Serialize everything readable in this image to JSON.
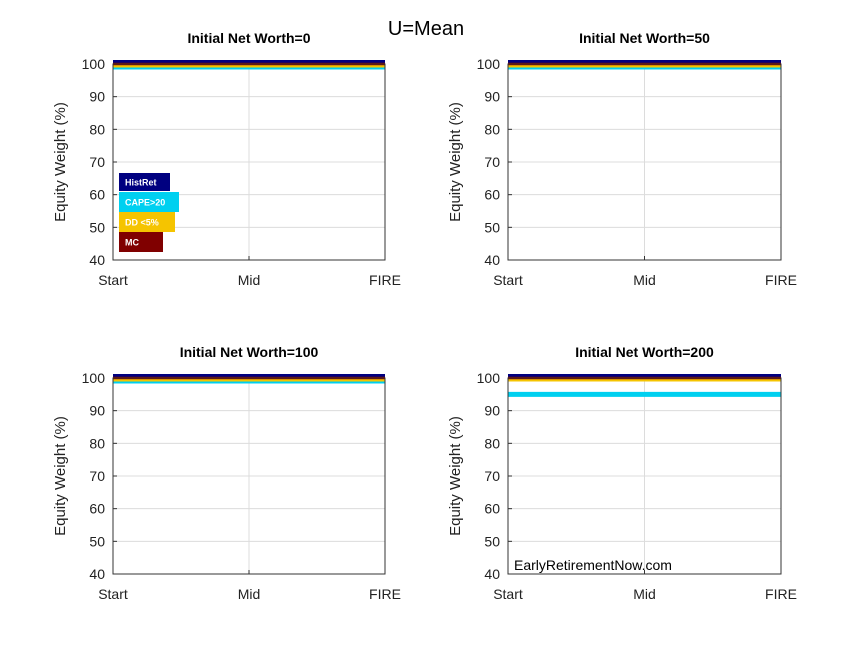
{
  "figure": {
    "title": "U=Mean",
    "watermark": "EarlyRetirementNow.com"
  },
  "legend": {
    "entries": [
      {
        "label": "HistRet",
        "color": "#000080"
      },
      {
        "label": "CAPE>20",
        "color": "#00d0f0"
      },
      {
        "label": "DD <5%",
        "color": "#f5c400"
      },
      {
        "label": "MC",
        "color": "#800000"
      }
    ]
  },
  "chart_data": [
    {
      "type": "line",
      "title": "Initial Net Worth=0",
      "ylabel": "Equity Weight (%)",
      "xticks": [
        "Start",
        "Mid",
        "FIRE"
      ],
      "ylim": [
        40,
        100
      ],
      "yticks": [
        40,
        50,
        60,
        70,
        80,
        90,
        100
      ],
      "grid": true,
      "x": [
        0,
        1,
        2
      ],
      "series": [
        {
          "name": "HistRet",
          "color": "#000080",
          "values": [
            100,
            100,
            100
          ]
        },
        {
          "name": "CAPE>20",
          "color": "#00d0f0",
          "values": [
            100,
            100,
            100
          ]
        },
        {
          "name": "DD <5%",
          "color": "#f5c400",
          "values": [
            100,
            100,
            100
          ]
        },
        {
          "name": "MC",
          "color": "#800000",
          "values": [
            100,
            100,
            100
          ]
        }
      ]
    },
    {
      "type": "line",
      "title": "Initial Net Worth=50",
      "ylabel": "Equity Weight (%)",
      "xticks": [
        "Start",
        "Mid",
        "FIRE"
      ],
      "ylim": [
        40,
        100
      ],
      "yticks": [
        40,
        50,
        60,
        70,
        80,
        90,
        100
      ],
      "grid": true,
      "x": [
        0,
        1,
        2
      ],
      "series": [
        {
          "name": "HistRet",
          "color": "#000080",
          "values": [
            100,
            100,
            100
          ]
        },
        {
          "name": "CAPE>20",
          "color": "#00d0f0",
          "values": [
            100,
            100,
            100
          ]
        },
        {
          "name": "DD <5%",
          "color": "#f5c400",
          "values": [
            100,
            100,
            100
          ]
        },
        {
          "name": "MC",
          "color": "#800000",
          "values": [
            100,
            100,
            100
          ]
        }
      ]
    },
    {
      "type": "line",
      "title": "Initial Net Worth=100",
      "ylabel": "Equity Weight (%)",
      "xticks": [
        "Start",
        "Mid",
        "FIRE"
      ],
      "ylim": [
        40,
        100
      ],
      "yticks": [
        40,
        50,
        60,
        70,
        80,
        90,
        100
      ],
      "grid": true,
      "x": [
        0,
        1,
        2
      ],
      "series": [
        {
          "name": "HistRet",
          "color": "#000080",
          "values": [
            100,
            100,
            100
          ]
        },
        {
          "name": "CAPE>20",
          "color": "#00d0f0",
          "values": [
            100,
            100,
            100
          ]
        },
        {
          "name": "DD <5%",
          "color": "#f5c400",
          "values": [
            100,
            100,
            100
          ]
        },
        {
          "name": "MC",
          "color": "#800000",
          "values": [
            100,
            100,
            100
          ]
        }
      ]
    },
    {
      "type": "line",
      "title": "Initial Net Worth=200",
      "ylabel": "Equity Weight (%)",
      "xticks": [
        "Start",
        "Mid",
        "FIRE"
      ],
      "ylim": [
        40,
        100
      ],
      "yticks": [
        40,
        50,
        60,
        70,
        80,
        90,
        100
      ],
      "grid": true,
      "x": [
        0,
        1,
        2
      ],
      "series": [
        {
          "name": "HistRet",
          "color": "#000080",
          "values": [
            100,
            100,
            100
          ]
        },
        {
          "name": "CAPE>20",
          "color": "#00d0f0",
          "values": [
            95,
            95,
            95
          ]
        },
        {
          "name": "DD <5%",
          "color": "#f5c400",
          "values": [
            100,
            100,
            100
          ]
        },
        {
          "name": "MC",
          "color": "#800000",
          "values": [
            100,
            100,
            100
          ]
        }
      ]
    }
  ]
}
